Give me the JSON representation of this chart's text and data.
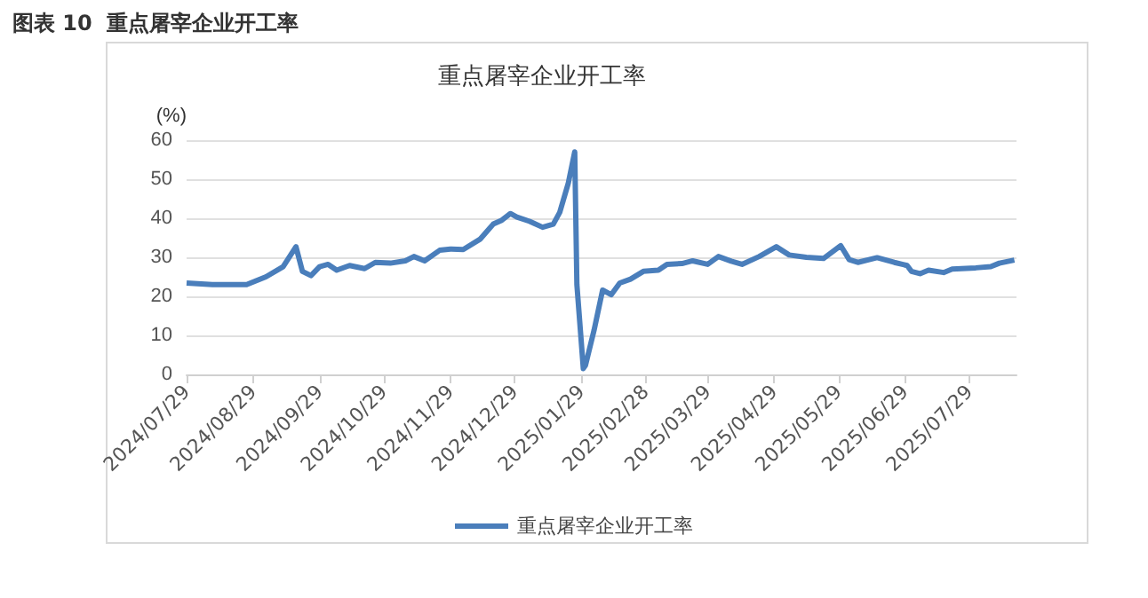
{
  "chart_data": {
    "type": "line",
    "title": "图表 10  重点屠宰企业开工率",
    "subtitle": "重点屠宰企业开工率",
    "ylabel": "(%)",
    "xlim": [
      "2024-07-29",
      "2025-08-20"
    ],
    "xticks": [
      {
        "value": "2024-07-29",
        "label": "2024/07/29"
      },
      {
        "value": "2024-08-29",
        "label": "2024/08/29"
      },
      {
        "value": "2024-09-29",
        "label": "2024/09/29"
      },
      {
        "value": "2024-10-29",
        "label": "2024/10/29"
      },
      {
        "value": "2024-11-29",
        "label": "2024/11/29"
      },
      {
        "value": "2024-12-29",
        "label": "2024/12/29"
      },
      {
        "value": "2025-01-29",
        "label": "2025/01/29"
      },
      {
        "value": "2025-02-28",
        "label": "2025/02/28"
      },
      {
        "value": "2025-03-29",
        "label": "2025/03/29"
      },
      {
        "value": "2025-04-29",
        "label": "2025/04/29"
      },
      {
        "value": "2025-05-29",
        "label": "2025/05/29"
      },
      {
        "value": "2025-06-29",
        "label": "2025/06/29"
      },
      {
        "value": "2025-07-29",
        "label": "2025/07/29"
      }
    ],
    "ylim": [
      0,
      60
    ],
    "yticks": [
      0,
      10,
      20,
      30,
      40,
      50,
      60
    ],
    "grid": "y",
    "legend": "bottom",
    "marker": "none",
    "line_style": "solid",
    "x": [
      "2024-07-29",
      "2024-08-10",
      "2024-08-26",
      "2024-09-04",
      "2024-09-12",
      "2024-09-18",
      "2024-09-21",
      "2024-09-25",
      "2024-09-29",
      "2024-10-03",
      "2024-10-07",
      "2024-10-13",
      "2024-10-20",
      "2024-10-25",
      "2024-11-01",
      "2024-11-08",
      "2024-11-12",
      "2024-11-17",
      "2024-11-24",
      "2024-11-29",
      "2024-12-05",
      "2024-12-13",
      "2024-12-19",
      "2024-12-23",
      "2024-12-27",
      "2024-12-30",
      "2025-01-05",
      "2025-01-11",
      "2025-01-16",
      "2025-01-19",
      "2025-01-23",
      "2025-01-26",
      "2025-01-27",
      "2025-01-30",
      "2025-01-31",
      "2025-02-04",
      "2025-02-08",
      "2025-02-12",
      "2025-02-16",
      "2025-02-21",
      "2025-02-27",
      "2025-03-06",
      "2025-03-10",
      "2025-03-17",
      "2025-03-22",
      "2025-03-29",
      "2025-04-03",
      "2025-04-09",
      "2025-04-14",
      "2025-04-22",
      "2025-04-30",
      "2025-05-06",
      "2025-05-14",
      "2025-05-22",
      "2025-05-30",
      "2025-06-03",
      "2025-06-07",
      "2025-06-16",
      "2025-06-24",
      "2025-06-30",
      "2025-07-02",
      "2025-07-06",
      "2025-07-10",
      "2025-07-17",
      "2025-07-21",
      "2025-08-01",
      "2025-08-08",
      "2025-08-12",
      "2025-08-19"
    ],
    "series": [
      {
        "name": "重点屠宰企业开工率",
        "color": "#4a7ebb",
        "values": [
          23.4,
          23,
          23,
          25,
          27.6,
          32.7,
          26.4,
          25.3,
          27.6,
          28.2,
          26.7,
          27.9,
          27.1,
          28.7,
          28.5,
          29.1,
          30.2,
          29.1,
          31.8,
          32.1,
          32,
          34.7,
          38.5,
          39.5,
          41.2,
          40.3,
          39.2,
          37.7,
          38.5,
          41.5,
          49,
          57,
          23,
          1.5,
          2.3,
          11.3,
          21.6,
          20.4,
          23.4,
          24.4,
          26.4,
          26.7,
          28.2,
          28.4,
          29.1,
          28.2,
          30.2,
          29,
          28.2,
          30.2,
          32.7,
          30.6,
          30,
          29.7,
          33,
          29.4,
          28.7,
          29.9,
          28.7,
          27.9,
          26.4,
          25.8,
          26.7,
          26.1,
          27,
          27.3,
          27.6,
          28.5,
          29.3
        ]
      }
    ]
  }
}
